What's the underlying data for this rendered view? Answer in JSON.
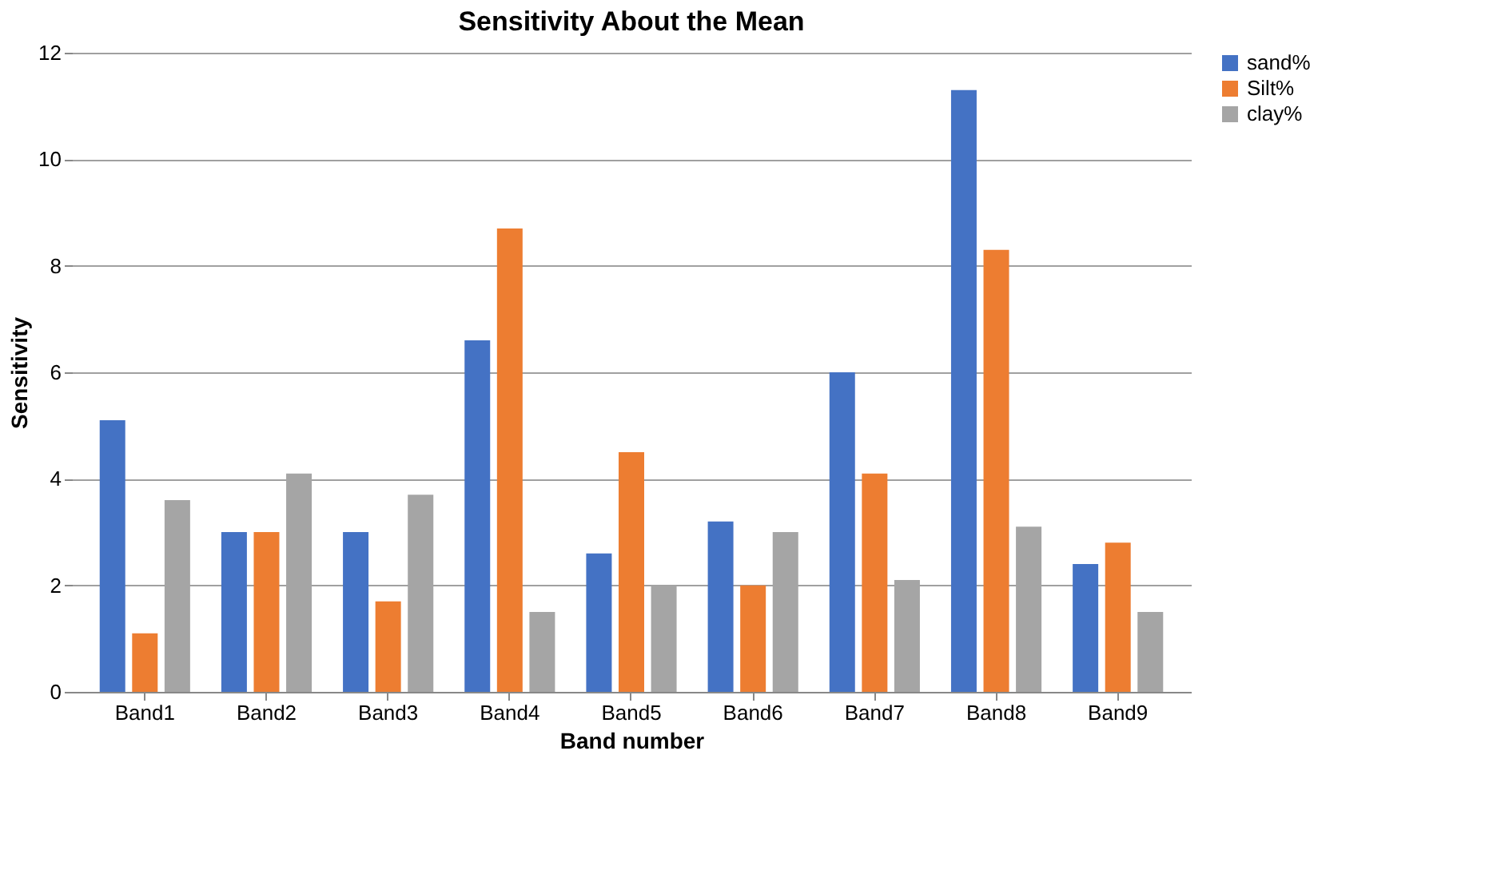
{
  "chart_data": {
    "type": "bar",
    "title": "Sensitivity About the Mean",
    "xlabel": "Band number",
    "ylabel": "Sensitivity",
    "categories": [
      "Band1",
      "Band2",
      "Band3",
      "Band4",
      "Band5",
      "Band6",
      "Band7",
      "Band8",
      "Band9"
    ],
    "series": [
      {
        "name": "sand%",
        "color": "#4472c4",
        "values": [
          5.1,
          3.0,
          3.0,
          6.6,
          2.6,
          3.2,
          6.0,
          11.3,
          2.4
        ]
      },
      {
        "name": "Silt%",
        "color": "#ed7d31",
        "values": [
          1.1,
          3.0,
          1.7,
          8.7,
          4.5,
          2.0,
          4.1,
          8.3,
          2.8
        ]
      },
      {
        "name": "clay%",
        "color": "#a5a5a5",
        "values": [
          3.6,
          4.1,
          3.7,
          1.5,
          2.0,
          3.0,
          2.1,
          3.1,
          1.5
        ]
      }
    ],
    "ylim": [
      0,
      12
    ],
    "yticks": [
      0,
      2,
      4,
      6,
      8,
      10,
      12
    ],
    "grid": "y",
    "legend": "right"
  }
}
